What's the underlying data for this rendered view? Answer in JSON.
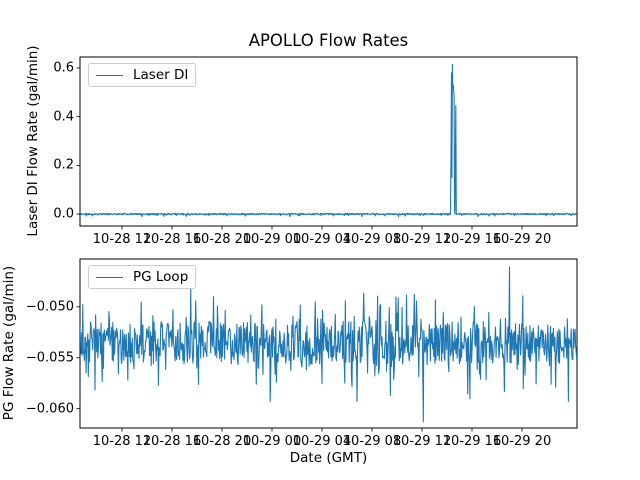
{
  "chart_data": [
    {
      "type": "line",
      "title": "APOLLO Flow Rates",
      "ylabel": "Laser DI Flow Rate (gal/min)",
      "legend": [
        "Laser DI"
      ],
      "legend_loc": "upper left",
      "line_color": "#1f77b4",
      "x_tick_labels": [
        "10-28 12",
        "10-28 16",
        "10-28 20",
        "10-29 00",
        "10-29 04",
        "10-29 08",
        "10-29 12",
        "10-29 16",
        "10-29 20"
      ],
      "x_tick_hours": [
        12,
        16,
        20,
        24,
        28,
        32,
        36,
        40,
        44
      ],
      "xlim_hours": [
        8.64,
        48.4
      ],
      "y_tick_labels": [
        "0.0",
        "0.2",
        "0.4",
        "0.6"
      ],
      "y_tick_values": [
        0.0,
        0.2,
        0.4,
        0.6
      ],
      "ylim": [
        -0.049,
        0.645
      ],
      "grid": false,
      "baseline_value": 0.0,
      "baseline_noise_amplitude": 0.006,
      "spike": {
        "approx_time": "10-29 14:30",
        "peak_value": 0.615,
        "secondary_peak_value": 0.445,
        "points_hour_value": [
          [
            38.28,
            0.0
          ],
          [
            38.33,
            0.3
          ],
          [
            38.36,
            0.58
          ],
          [
            38.39,
            0.15
          ],
          [
            38.43,
            0.615
          ],
          [
            38.46,
            0.52
          ],
          [
            38.5,
            0.53
          ],
          [
            38.54,
            0.5
          ],
          [
            38.57,
            0.48
          ],
          [
            38.6,
            0.02
          ],
          [
            38.63,
            0.0
          ],
          [
            38.7,
            0.445
          ],
          [
            38.74,
            0.0
          ]
        ]
      },
      "noise_seed": 11
    },
    {
      "type": "line",
      "title": "",
      "ylabel": "PG Flow Rate (gal/min)",
      "xlabel": "Date (GMT)",
      "legend": [
        "PG Loop"
      ],
      "legend_loc": "upper left",
      "line_color": "#1f77b4",
      "x_tick_labels": [
        "10-28 12",
        "10-28 16",
        "10-28 20",
        "10-29 00",
        "10-29 04",
        "10-29 08",
        "10-29 12",
        "10-29 16",
        "10-29 20"
      ],
      "x_tick_hours": [
        12,
        16,
        20,
        24,
        28,
        32,
        36,
        40,
        44
      ],
      "xlim_hours": [
        8.64,
        48.4
      ],
      "y_tick_labels": [
        "−0.050",
        "−0.055",
        "−0.060"
      ],
      "y_tick_values": [
        -0.05,
        -0.055,
        -0.06
      ],
      "ylim": [
        -0.0619,
        -0.0453
      ],
      "grid": false,
      "noise_mean": -0.0535,
      "noise_core_band": [
        -0.0556,
        -0.0514
      ],
      "noise_extremes": [
        -0.059,
        -0.047
      ],
      "outliers_hour_value": [
        [
          36.1,
          -0.0613
        ],
        [
          43.0,
          -0.0461
        ]
      ],
      "noise_seed": 7
    }
  ]
}
